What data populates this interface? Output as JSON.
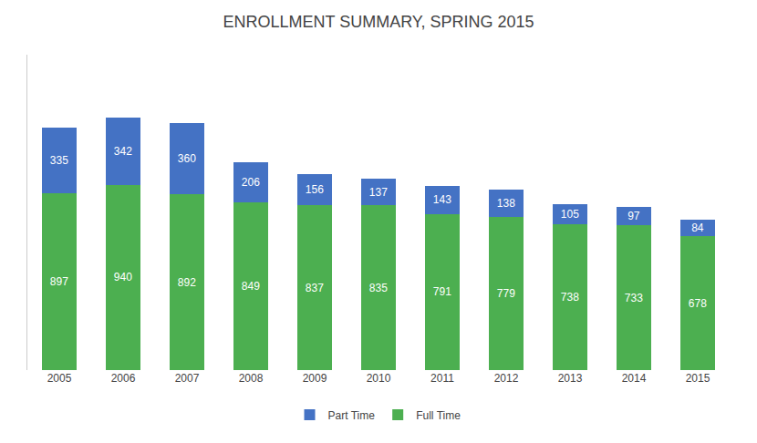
{
  "chart_data": {
    "type": "bar",
    "title": "ENROLLMENT SUMMARY, SPRING 2015",
    "categories": [
      "2005",
      "2006",
      "2007",
      "2008",
      "2009",
      "2010",
      "2011",
      "2012",
      "2013",
      "2014",
      "2015"
    ],
    "series": [
      {
        "name": "Full Time",
        "color": "#4caf50",
        "values": [
          897,
          940,
          892,
          849,
          837,
          835,
          791,
          779,
          738,
          733,
          678
        ]
      },
      {
        "name": "Part Time",
        "color": "#4472c4",
        "values": [
          335,
          342,
          360,
          206,
          156,
          137,
          143,
          138,
          105,
          97,
          84
        ]
      }
    ],
    "stacked": true,
    "ylim": [
      0,
      1600
    ],
    "data_labels": true,
    "tick_labels": "x",
    "grid": false,
    "legend": "bottom"
  }
}
